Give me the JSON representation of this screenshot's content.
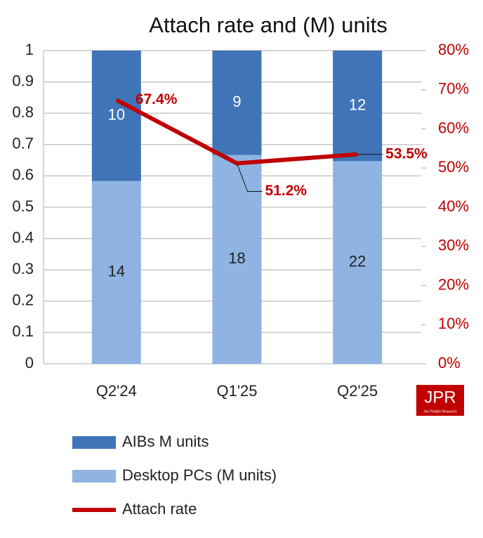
{
  "chart_data": {
    "type": "bar",
    "stacking": "percent",
    "title": "Attach rate and (M) units",
    "categories": [
      "Q2'24",
      "Q1'25",
      "Q2'25"
    ],
    "series": [
      {
        "name": "AIBs M units",
        "color": "#3f74b8",
        "values": [
          10,
          9,
          12
        ]
      },
      {
        "name": "Desktop PCs (M units)",
        "color": "#8fb4e3",
        "values": [
          14,
          18,
          22
        ]
      },
      {
        "name": "Attach rate",
        "color": "#c00000",
        "type": "line",
        "axis": "y2",
        "values": [
          67.4,
          51.2,
          53.5
        ],
        "value_labels": [
          "67.4%",
          "51.2%",
          "53.5%"
        ]
      }
    ],
    "ylim": [
      0,
      1
    ],
    "yticks": [
      0,
      0.1,
      0.2,
      0.3,
      0.4,
      0.5,
      0.6,
      0.7,
      0.8,
      0.9,
      1
    ],
    "y2lim": [
      0,
      80
    ],
    "y2ticks": [
      {
        "value": 0,
        "label": "0%"
      },
      {
        "value": 10,
        "label": "10%"
      },
      {
        "value": 20,
        "label": "20%"
      },
      {
        "value": 30,
        "label": "30%"
      },
      {
        "value": 40,
        "label": "40%"
      },
      {
        "value": 50,
        "label": "50%"
      },
      {
        "value": 60,
        "label": "60%"
      },
      {
        "value": 70,
        "label": "70%"
      },
      {
        "value": 80,
        "label": "80%"
      }
    ],
    "grid": true,
    "legend": "bottom",
    "logo": "JPR",
    "logo_subtitle": "Jon Peddie Research"
  }
}
